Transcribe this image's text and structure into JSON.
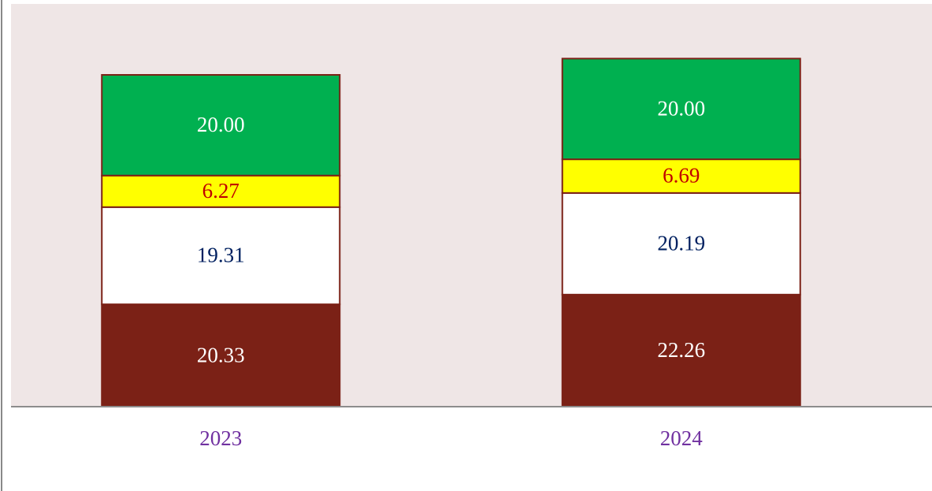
{
  "chart_data": {
    "type": "stacked_bar",
    "categories": [
      "2023",
      "2024"
    ],
    "series": [
      {
        "color": "#7b2116",
        "label_color": "#ffffff",
        "values": [
          20.33,
          22.26
        ],
        "value_labels": [
          "20.33",
          "22.26"
        ]
      },
      {
        "color": "#ffffff",
        "label_color": "#002060",
        "values": [
          19.31,
          20.19
        ],
        "value_labels": [
          "19.31",
          "20.19"
        ]
      },
      {
        "color": "#ffff00",
        "label_color": "#c00000",
        "values": [
          6.27,
          6.69
        ],
        "value_labels": [
          "6.27",
          "6.69"
        ]
      },
      {
        "color": "#00b050",
        "label_color": "#ffffff",
        "values": [
          20.0,
          20.0
        ],
        "value_labels": [
          "20.00",
          "20.00"
        ]
      }
    ],
    "ylim": [
      0,
      80
    ],
    "category_color": "#7030a0",
    "plot_background": "#efe6e6"
  }
}
